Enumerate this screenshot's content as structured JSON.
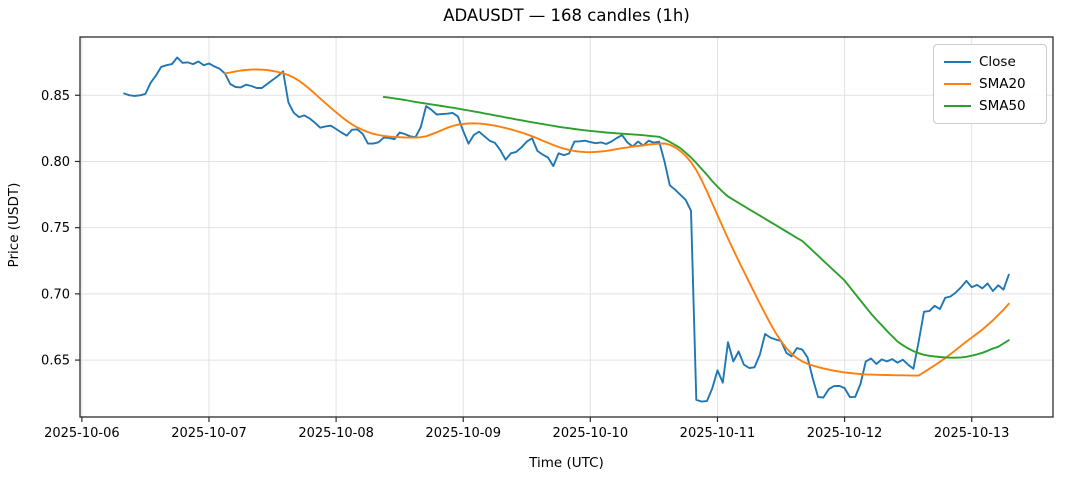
{
  "chart_data": {
    "type": "line",
    "title": "ADAUSDT — 168 candles (1h)",
    "xlabel": "Time (UTC)",
    "ylabel": "Price (USDT)",
    "grid": true,
    "legend_position": "upper right",
    "x_start_label": "2025-10-06 08:00",
    "x_step": "1h",
    "num_candles": 168,
    "xlim_hours": [
      -0.35,
      183.35
    ],
    "ylim": [
      0.607,
      0.894
    ],
    "xticks": [
      {
        "hour": 0,
        "label": "2025-10-06"
      },
      {
        "hour": 24,
        "label": "2025-10-07"
      },
      {
        "hour": 48,
        "label": "2025-10-08"
      },
      {
        "hour": 72,
        "label": "2025-10-09"
      },
      {
        "hour": 96,
        "label": "2025-10-10"
      },
      {
        "hour": 120,
        "label": "2025-10-11"
      },
      {
        "hour": 144,
        "label": "2025-10-12"
      },
      {
        "hour": 168,
        "label": "2025-10-13"
      }
    ],
    "yticks": [
      {
        "value": 0.65,
        "label": "0.65"
      },
      {
        "value": 0.7,
        "label": "0.70"
      },
      {
        "value": 0.75,
        "label": "0.75"
      },
      {
        "value": 0.8,
        "label": "0.80"
      },
      {
        "value": 0.85,
        "label": "0.85"
      }
    ],
    "data_start_hour": 8,
    "series": [
      {
        "name": "Close",
        "color": "#1f77b4",
        "start_index": 0,
        "values": [
          0.8513,
          0.85,
          0.8495,
          0.85,
          0.851,
          0.8595,
          0.865,
          0.8715,
          0.8727,
          0.8735,
          0.8785,
          0.8745,
          0.8748,
          0.8735,
          0.8755,
          0.8727,
          0.874,
          0.8718,
          0.87,
          0.8665,
          0.8585,
          0.8562,
          0.8559,
          0.858,
          0.857,
          0.8555,
          0.8555,
          0.8585,
          0.8615,
          0.8645,
          0.868,
          0.8445,
          0.8368,
          0.8335,
          0.8348,
          0.8325,
          0.8293,
          0.8255,
          0.8265,
          0.827,
          0.8245,
          0.8219,
          0.8195,
          0.824,
          0.8242,
          0.821,
          0.8135,
          0.8135,
          0.8145,
          0.818,
          0.8178,
          0.8168,
          0.8219,
          0.8207,
          0.819,
          0.8183,
          0.826,
          0.8418,
          0.839,
          0.8355,
          0.8358,
          0.8361,
          0.8367,
          0.834,
          0.823,
          0.8135,
          0.82,
          0.8225,
          0.819,
          0.8157,
          0.814,
          0.8085,
          0.8013,
          0.8062,
          0.8072,
          0.8107,
          0.815,
          0.8175,
          0.808,
          0.8052,
          0.803,
          0.7965,
          0.8062,
          0.8048,
          0.806,
          0.815,
          0.8152,
          0.8157,
          0.8146,
          0.8138,
          0.8144,
          0.8132,
          0.8151,
          0.8177,
          0.8199,
          0.8144,
          0.8112,
          0.8151,
          0.812,
          0.8157,
          0.8142,
          0.8149,
          0.8,
          0.782,
          0.7787,
          0.7748,
          0.771,
          0.7627,
          0.62,
          0.6186,
          0.619,
          0.6285,
          0.6422,
          0.633,
          0.6635,
          0.649,
          0.6565,
          0.6465,
          0.644,
          0.6445,
          0.654,
          0.6697,
          0.667,
          0.6655,
          0.6645,
          0.6555,
          0.6528,
          0.659,
          0.658,
          0.652,
          0.636,
          0.622,
          0.6217,
          0.628,
          0.6303,
          0.6305,
          0.6288,
          0.622,
          0.6222,
          0.632,
          0.649,
          0.6512,
          0.647,
          0.6505,
          0.649,
          0.6507,
          0.648,
          0.6503,
          0.6465,
          0.6435,
          0.664,
          0.6865,
          0.687,
          0.691,
          0.6885,
          0.697,
          0.698,
          0.701,
          0.705,
          0.7098,
          0.705,
          0.7068,
          0.7042,
          0.7078,
          0.7022,
          0.7065,
          0.7032,
          0.7145
        ]
      },
      {
        "name": "SMA20",
        "color": "#ff7f0e",
        "start_index": 19,
        "values": [
          0.8665,
          0.8672,
          0.868,
          0.8687,
          0.8691,
          0.8694,
          0.8695,
          0.8693,
          0.869,
          0.8684,
          0.8676,
          0.8666,
          0.8652,
          0.8633,
          0.8609,
          0.858,
          0.8547,
          0.8512,
          0.8476,
          0.844,
          0.8405,
          0.8371,
          0.8338,
          0.8307,
          0.828,
          0.8257,
          0.8238,
          0.8222,
          0.8209,
          0.82,
          0.8193,
          0.8188,
          0.8185,
          0.8183,
          0.8181,
          0.818,
          0.818,
          0.8183,
          0.819,
          0.8205,
          0.822,
          0.8237,
          0.8254,
          0.8268,
          0.8278,
          0.8284,
          0.8287,
          0.8288,
          0.8286,
          0.8282,
          0.8277,
          0.827,
          0.8262,
          0.8252,
          0.8242,
          0.8231,
          0.8219,
          0.8205,
          0.819,
          0.8174,
          0.8157,
          0.814,
          0.8124,
          0.8109,
          0.8097,
          0.8087,
          0.8079,
          0.8074,
          0.8071,
          0.807,
          0.8072,
          0.8075,
          0.808,
          0.8086,
          0.8093,
          0.81,
          0.8106,
          0.8112,
          0.8117,
          0.8122,
          0.8127,
          0.8131,
          0.8134,
          0.8136,
          0.8126,
          0.8106,
          0.8078,
          0.8042,
          0.7995,
          0.7935,
          0.786,
          0.7775,
          0.7685,
          0.7595,
          0.7505,
          0.7418,
          0.7333,
          0.725,
          0.7168,
          0.7087,
          0.7007,
          0.6928,
          0.685,
          0.6775,
          0.6705,
          0.6643,
          0.659,
          0.6547,
          0.6515,
          0.649,
          0.6472,
          0.6458,
          0.6447,
          0.6437,
          0.6428,
          0.642,
          0.6413,
          0.6407,
          0.6402,
          0.6398,
          0.6395,
          0.6392,
          0.639,
          0.6389,
          0.6388,
          0.6387,
          0.6386,
          0.6385,
          0.6385,
          0.6384,
          0.6383,
          0.6383,
          0.6408,
          0.6434,
          0.646,
          0.6487,
          0.6515,
          0.6545,
          0.6576,
          0.6608,
          0.664,
          0.667,
          0.67,
          0.673,
          0.6765,
          0.68,
          0.684,
          0.688,
          0.6925
        ]
      },
      {
        "name": "SMA50",
        "color": "#2ca02c",
        "start_index": 49,
        "values": [
          0.8487,
          0.8482,
          0.8476,
          0.847,
          0.8464,
          0.8457,
          0.845,
          0.8443,
          0.8437,
          0.8431,
          0.8425,
          0.8419,
          0.8412,
          0.8406,
          0.8399,
          0.8392,
          0.8385,
          0.8378,
          0.8371,
          0.8363,
          0.8356,
          0.8348,
          0.8341,
          0.8333,
          0.8326,
          0.8318,
          0.8311,
          0.8303,
          0.8296,
          0.8289,
          0.8282,
          0.8275,
          0.8269,
          0.8262,
          0.8256,
          0.8251,
          0.8245,
          0.824,
          0.8235,
          0.8231,
          0.8227,
          0.8223,
          0.8219,
          0.8216,
          0.8213,
          0.821,
          0.8207,
          0.8204,
          0.8201,
          0.8198,
          0.8194,
          0.819,
          0.8186,
          0.8168,
          0.8148,
          0.8125,
          0.81,
          0.8066,
          0.803,
          0.7988,
          0.7944,
          0.79,
          0.7852,
          0.781,
          0.777,
          0.7735,
          0.7711,
          0.7687,
          0.7663,
          0.7639,
          0.7615,
          0.7591,
          0.7567,
          0.7543,
          0.7519,
          0.7495,
          0.7471,
          0.7447,
          0.7423,
          0.74,
          0.7363,
          0.7325,
          0.7288,
          0.725,
          0.7213,
          0.7175,
          0.7138,
          0.71,
          0.705,
          0.7,
          0.695,
          0.69,
          0.685,
          0.6806,
          0.6763,
          0.6721,
          0.668,
          0.664,
          0.6612,
          0.6588,
          0.6568,
          0.6552,
          0.654,
          0.6532,
          0.6527,
          0.6523,
          0.652,
          0.6518,
          0.6518,
          0.652,
          0.6525,
          0.6533,
          0.6543,
          0.6555,
          0.657,
          0.6587,
          0.66,
          0.6625,
          0.665
        ]
      }
    ]
  }
}
